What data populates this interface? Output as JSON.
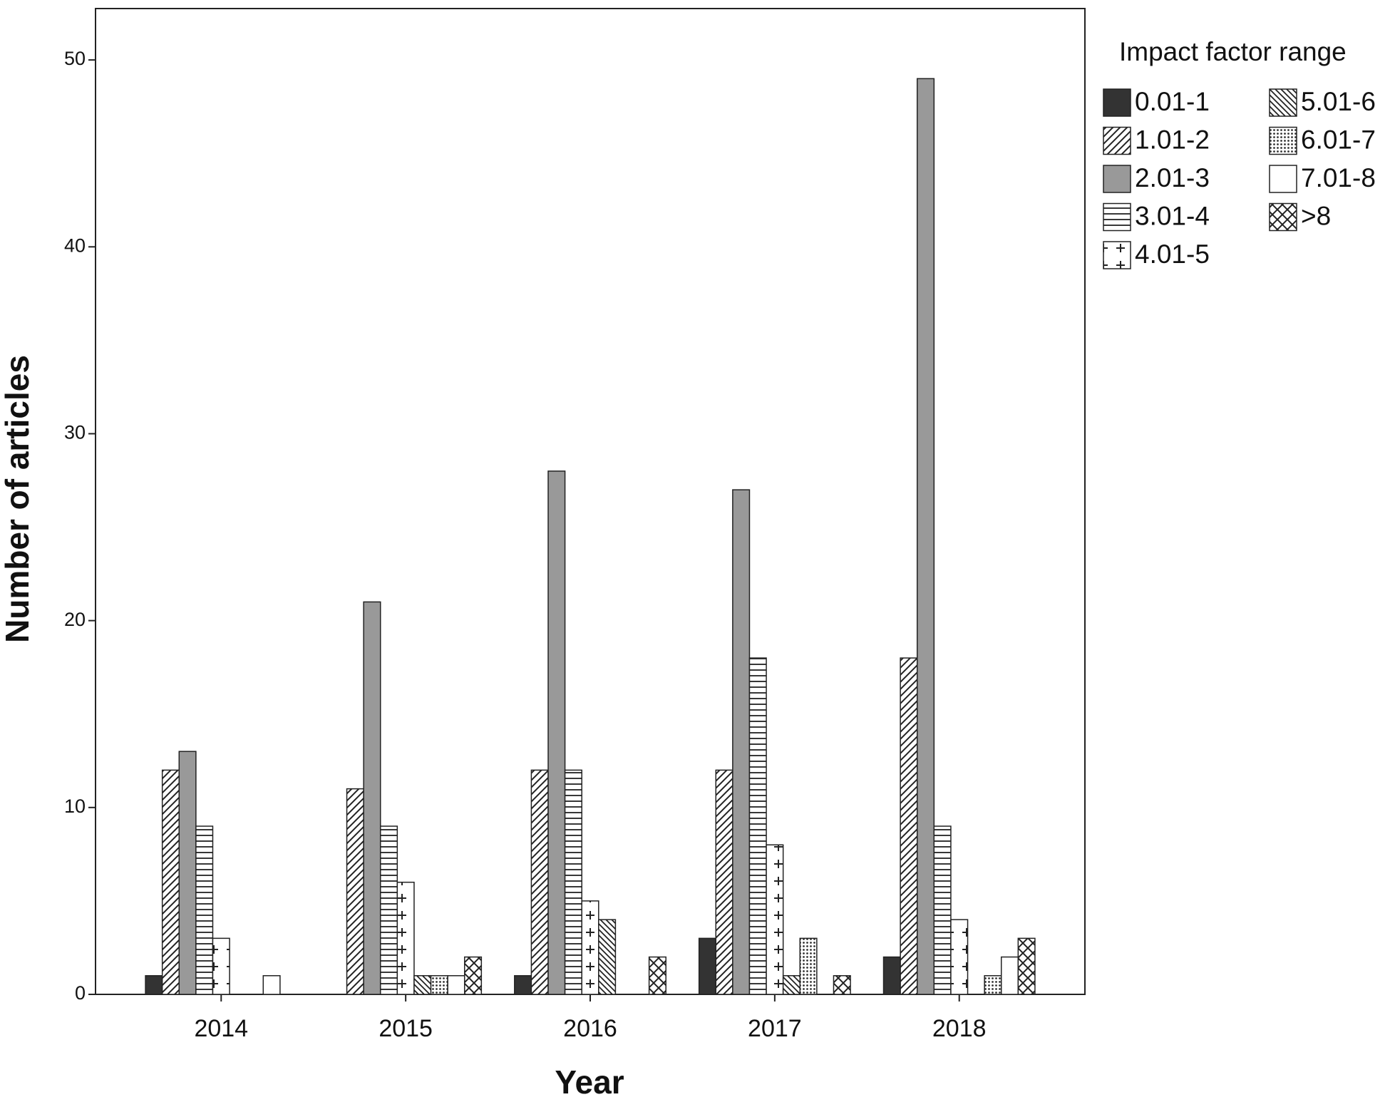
{
  "chart_data": {
    "type": "bar",
    "x_label": "Year",
    "y_label": "Number of articles",
    "legend_title": "Impact factor range",
    "categories": [
      "2014",
      "2015",
      "2016",
      "2017",
      "2018"
    ],
    "series": [
      {
        "name": "0.01-1",
        "pattern": "dark",
        "values": [
          1,
          0,
          1,
          3,
          2
        ]
      },
      {
        "name": "1.01-2",
        "pattern": "diag",
        "values": [
          12,
          11,
          12,
          12,
          18
        ]
      },
      {
        "name": "2.01-3",
        "pattern": "gray",
        "values": [
          13,
          21,
          28,
          27,
          49
        ]
      },
      {
        "name": "3.01-4",
        "pattern": "hlines",
        "values": [
          9,
          9,
          12,
          18,
          9
        ]
      },
      {
        "name": "4.01-5",
        "pattern": "plus",
        "values": [
          3,
          6,
          5,
          8,
          4
        ]
      },
      {
        "name": "5.01-6",
        "pattern": "backdiag",
        "values": [
          0,
          1,
          4,
          1,
          0
        ]
      },
      {
        "name": "6.01-7",
        "pattern": "dots",
        "values": [
          0,
          1,
          0,
          3,
          1
        ]
      },
      {
        "name": "7.01-8",
        "pattern": "white",
        "values": [
          1,
          1,
          0,
          0,
          2
        ]
      },
      {
        "name": ">8",
        "pattern": "cross",
        "values": [
          0,
          2,
          2,
          1,
          3
        ]
      }
    ],
    "ylim": [
      0,
      52.75
    ],
    "yticks": [
      0,
      10,
      20,
      30,
      40,
      50
    ],
    "grid": false
  }
}
